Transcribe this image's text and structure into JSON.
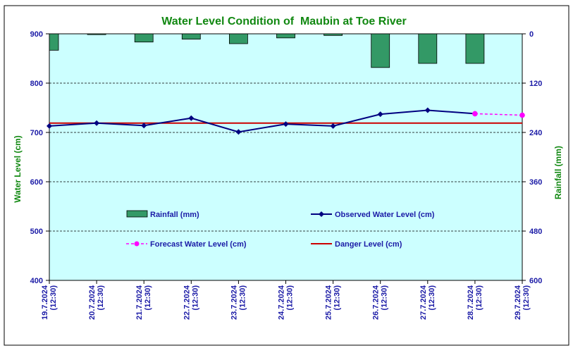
{
  "chart_data": {
    "type": "bar+line",
    "title": "Water Level Condition of  Maubin at Toe River",
    "ylabel_left": "Water Level (cm)",
    "ylabel_right": "Rainfall (mm)",
    "ylim_left": [
      400,
      900
    ],
    "yticks_left": [
      400,
      500,
      600,
      700,
      800,
      900
    ],
    "ylim_right": [
      600,
      0
    ],
    "yticks_right": [
      0,
      120,
      240,
      360,
      480,
      600
    ],
    "grid": "horizontal dashed",
    "legend_placement": "inside-lower",
    "categories": [
      [
        "19.7.2024",
        "(12:30)"
      ],
      [
        "20.7.2024",
        "(12:30)"
      ],
      [
        "21.7.2024",
        "(12:30)"
      ],
      [
        "22.7.2024",
        "(12:30)"
      ],
      [
        "23.7.2024",
        "(12:30)"
      ],
      [
        "24.7.2024",
        "(12:30)"
      ],
      [
        "25.7.2024",
        "(12:30)"
      ],
      [
        "26.7.2024",
        "(12:30)"
      ],
      [
        "27.7.2024",
        "(12:30)"
      ],
      [
        "28.7.2024",
        "(12:30)"
      ],
      [
        "29.7.2024",
        "(12:30)"
      ]
    ],
    "series": [
      {
        "name": "Rainfall (mm)",
        "kind": "bar",
        "axis": "right",
        "color": "#339966",
        "values": [
          40,
          2,
          20,
          13,
          24,
          10,
          4,
          82,
          72,
          72,
          null
        ]
      },
      {
        "name": "Observed Water Level (cm)",
        "kind": "line",
        "axis": "left",
        "color": "#000080",
        "values": [
          713,
          719,
          714,
          729,
          701,
          717,
          713,
          737,
          745,
          738,
          null
        ]
      },
      {
        "name": "Forecast Water Level (cm)",
        "kind": "dashed-line",
        "axis": "left",
        "color": "#ff00ff",
        "values": [
          null,
          null,
          null,
          null,
          null,
          null,
          null,
          null,
          null,
          738,
          735
        ]
      },
      {
        "name": "Danger Level (cm)",
        "kind": "line",
        "axis": "left",
        "color": "#cc0000",
        "values": [
          719,
          719,
          719,
          719,
          719,
          719,
          719,
          719,
          719,
          719,
          719
        ]
      }
    ],
    "colors": {
      "plot_background": "#ccffff",
      "frame": "#000000",
      "title": "#118811",
      "ticks": "#1a1aa6"
    }
  }
}
